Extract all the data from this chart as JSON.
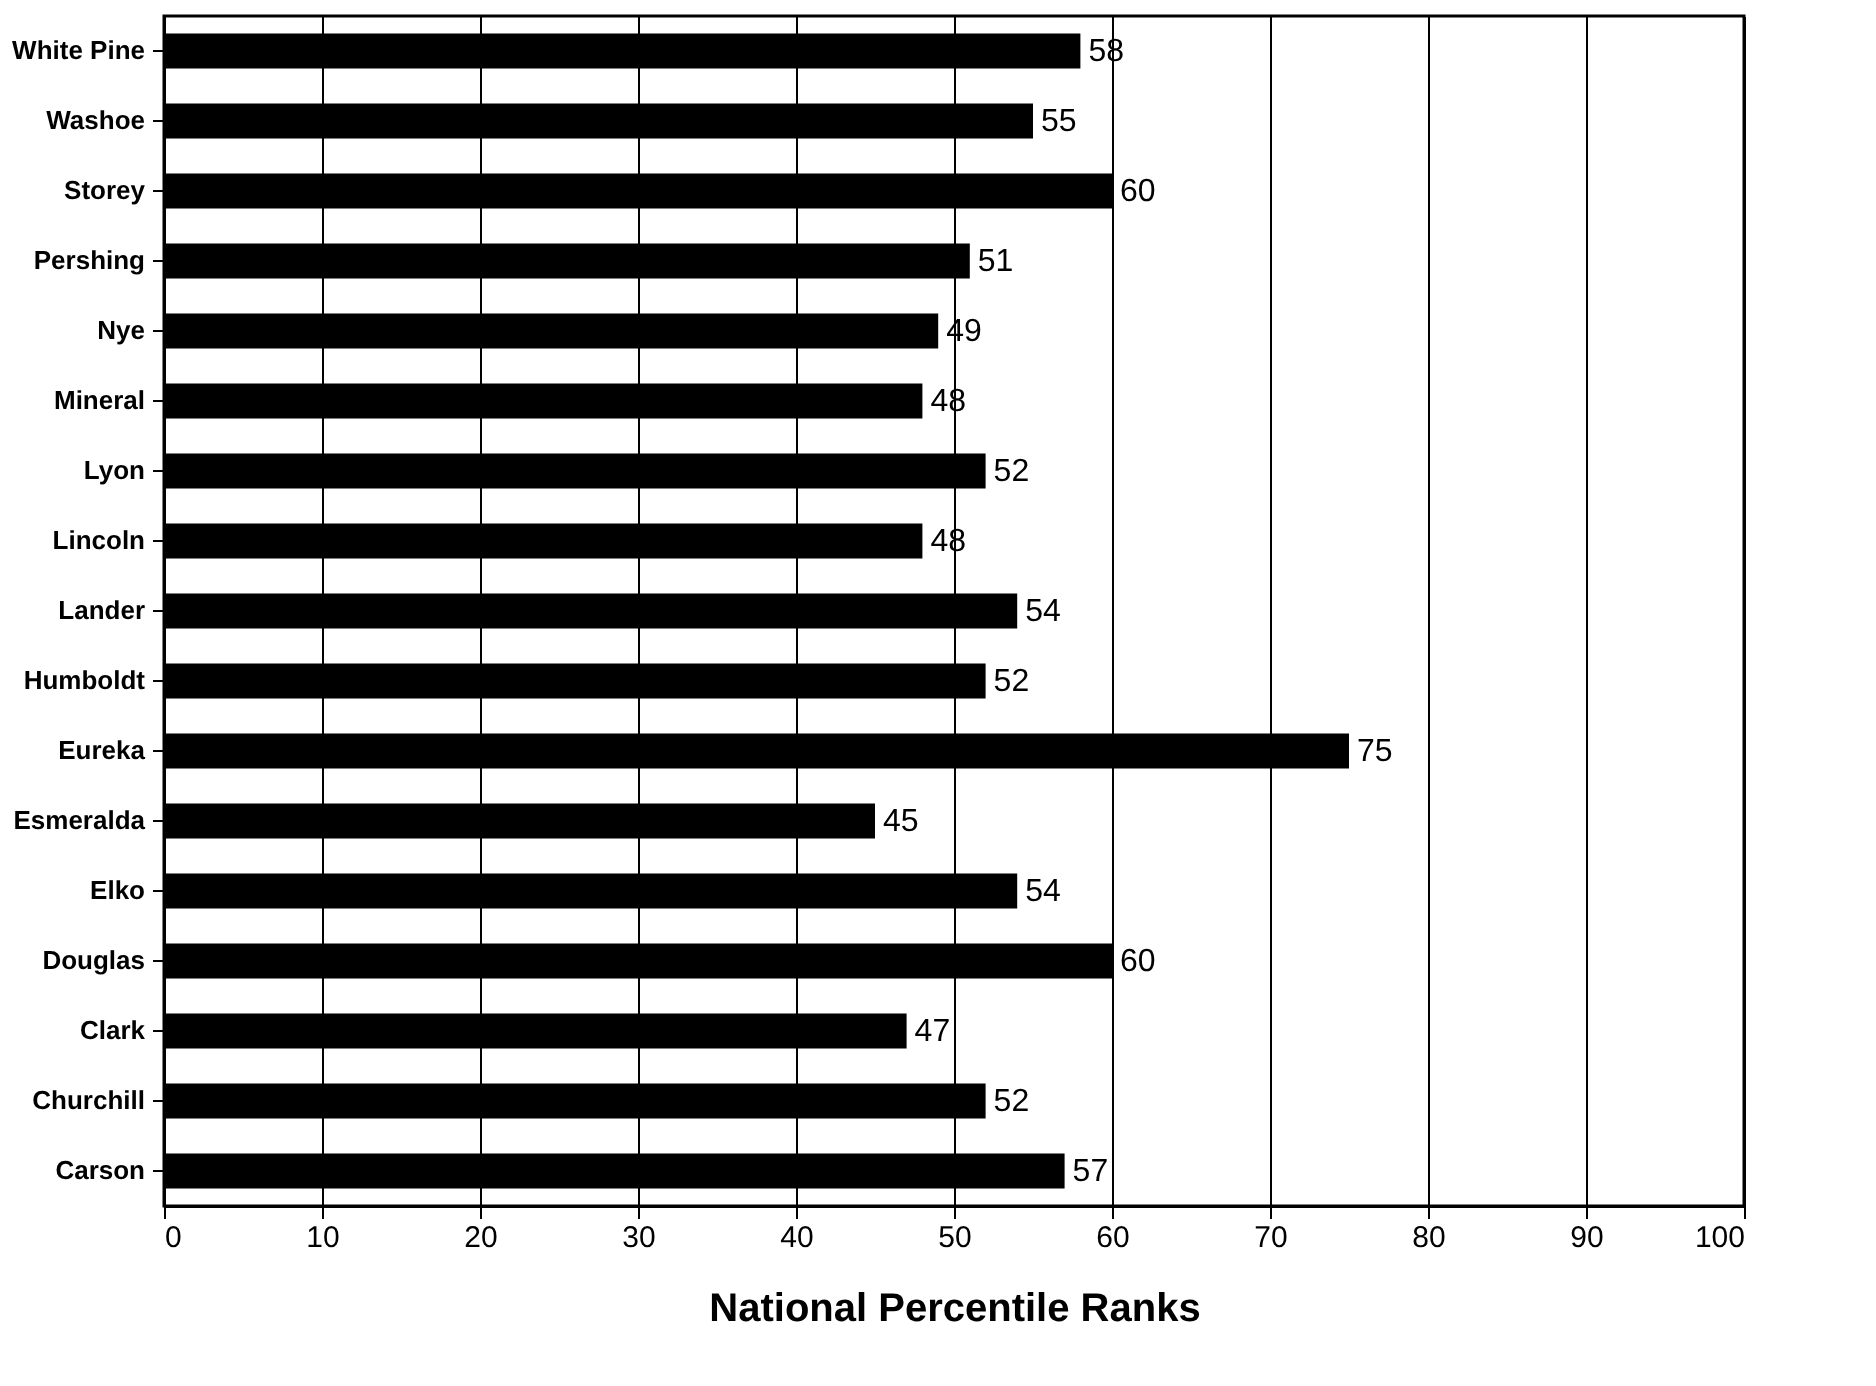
{
  "chart_data": {
    "type": "bar",
    "orientation": "horizontal",
    "xlabel": "National Percentile Ranks",
    "categories": [
      "White Pine",
      "Washoe",
      "Storey",
      "Pershing",
      "Nye",
      "Mineral",
      "Lyon",
      "Lincoln",
      "Lander",
      "Humboldt",
      "Eureka",
      "Esmeralda",
      "Elko",
      "Douglas",
      "Clark",
      "Churchill",
      "Carson"
    ],
    "values": [
      58,
      55,
      60,
      51,
      49,
      48,
      52,
      48,
      54,
      52,
      75,
      45,
      54,
      60,
      47,
      52,
      57
    ],
    "color": "#000000",
    "xlim": [
      0,
      100
    ],
    "xticks": [
      0,
      10,
      20,
      30,
      40,
      50,
      60,
      70,
      80,
      90,
      100
    ],
    "grid": "x",
    "data_labels": true
  }
}
